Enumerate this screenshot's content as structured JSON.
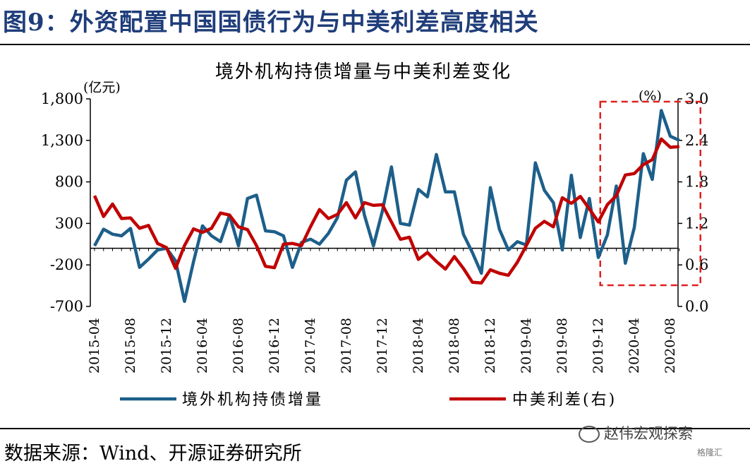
{
  "figure_title": "图9：外资配置中国国债行为与中美利差高度相关",
  "source": "数据来源：Wind、开源证券研究所",
  "watermark": "赵伟宏观探索",
  "watermark_small": "格隆汇",
  "colors": {
    "title": "#1f3d7a",
    "flow": "#1d5f8a",
    "spread": "#c00000",
    "highlight": "#e02020"
  },
  "chart_data": {
    "type": "line",
    "title": "境外机构持债增量与中美利差变化",
    "ylabel_left": "(亿元)",
    "ylabel_right": "(%)",
    "ylim_left": [
      -700,
      1800
    ],
    "ylim_right": [
      0.0,
      3.0
    ],
    "yticks_left": [
      "1,800",
      "1,300",
      "800",
      "300",
      "-200",
      "-700"
    ],
    "yticks_right": [
      "3.0",
      "2.4",
      "1.8",
      "1.2",
      "0.6",
      "0.0"
    ],
    "xtick_labels": [
      "2015-04",
      "2015-08",
      "2015-12",
      "2016-04",
      "2016-08",
      "2016-12",
      "2017-04",
      "2017-08",
      "2017-12",
      "2018-04",
      "2018-08",
      "2018-12",
      "2019-04",
      "2019-08",
      "2019-12",
      "2020-04",
      "2020-08"
    ],
    "highlight_period": [
      "2020-01",
      "2020-09"
    ],
    "series": [
      {
        "name": "境外机构持债增量",
        "axis": "left",
        "x": [
          "2015-04",
          "2015-05",
          "2015-06",
          "2015-07",
          "2015-08",
          "2015-09",
          "2015-10",
          "2015-11",
          "2015-12",
          "2016-01",
          "2016-02",
          "2016-03",
          "2016-04",
          "2016-05",
          "2016-06",
          "2016-07",
          "2016-08",
          "2016-09",
          "2016-10",
          "2016-11",
          "2016-12",
          "2017-01",
          "2017-02",
          "2017-03",
          "2017-04",
          "2017-05",
          "2017-06",
          "2017-07",
          "2017-08",
          "2017-09",
          "2017-10",
          "2017-11",
          "2017-12",
          "2018-01",
          "2018-02",
          "2018-03",
          "2018-04",
          "2018-05",
          "2018-06",
          "2018-07",
          "2018-08",
          "2018-09",
          "2018-10",
          "2018-11",
          "2018-12",
          "2019-01",
          "2019-02",
          "2019-03",
          "2019-04",
          "2019-05",
          "2019-06",
          "2019-07",
          "2019-08",
          "2019-09",
          "2019-10",
          "2019-11",
          "2019-12",
          "2020-01",
          "2020-02",
          "2020-03",
          "2020-04",
          "2020-05",
          "2020-06",
          "2020-07",
          "2020-08",
          "2020-09"
        ],
        "values": [
          30,
          230,
          170,
          150,
          240,
          -230,
          -130,
          -20,
          0,
          -150,
          -640,
          -160,
          270,
          150,
          80,
          400,
          30,
          600,
          640,
          210,
          200,
          150,
          -230,
          70,
          110,
          50,
          180,
          370,
          820,
          920,
          400,
          30,
          450,
          980,
          300,
          280,
          710,
          620,
          1130,
          680,
          680,
          170,
          -50,
          -300,
          730,
          230,
          -20,
          80,
          40,
          1030,
          700,
          550,
          -20,
          880,
          130,
          600,
          -110,
          160,
          750,
          -180,
          250,
          1140,
          830,
          1660,
          1350,
          1300
        ]
      },
      {
        "name": "中美利差(右)",
        "axis": "right",
        "x": [
          "2015-04",
          "2015-05",
          "2015-06",
          "2015-07",
          "2015-08",
          "2015-09",
          "2015-10",
          "2015-11",
          "2015-12",
          "2016-01",
          "2016-02",
          "2016-03",
          "2016-04",
          "2016-05",
          "2016-06",
          "2016-07",
          "2016-08",
          "2016-09",
          "2016-10",
          "2016-11",
          "2016-12",
          "2017-01",
          "2017-02",
          "2017-03",
          "2017-04",
          "2017-05",
          "2017-06",
          "2017-07",
          "2017-08",
          "2017-09",
          "2017-10",
          "2017-11",
          "2017-12",
          "2018-01",
          "2018-02",
          "2018-03",
          "2018-04",
          "2018-05",
          "2018-06",
          "2018-07",
          "2018-08",
          "2018-09",
          "2018-10",
          "2018-11",
          "2018-12",
          "2019-01",
          "2019-02",
          "2019-03",
          "2019-04",
          "2019-05",
          "2019-06",
          "2019-07",
          "2019-08",
          "2019-09",
          "2019-10",
          "2019-11",
          "2019-12",
          "2020-01",
          "2020-02",
          "2020-03",
          "2020-04",
          "2020-05",
          "2020-06",
          "2020-07",
          "2020-08",
          "2020-09"
        ],
        "values": [
          1.6,
          1.3,
          1.48,
          1.27,
          1.28,
          1.13,
          1.17,
          0.91,
          0.85,
          0.55,
          0.88,
          1.12,
          1.07,
          1.13,
          1.35,
          1.32,
          1.15,
          1.11,
          0.88,
          0.58,
          0.56,
          0.9,
          0.91,
          0.88,
          1.15,
          1.4,
          1.27,
          1.33,
          1.5,
          1.28,
          1.5,
          1.46,
          1.47,
          1.22,
          0.97,
          1.0,
          0.68,
          0.78,
          0.65,
          0.54,
          0.72,
          0.55,
          0.35,
          0.34,
          0.53,
          0.48,
          0.45,
          0.64,
          0.88,
          1.13,
          1.23,
          1.15,
          1.57,
          1.49,
          1.59,
          1.41,
          1.22,
          1.47,
          1.6,
          1.9,
          1.92,
          2.05,
          2.12,
          2.42,
          2.3,
          2.31
        ]
      }
    ]
  }
}
